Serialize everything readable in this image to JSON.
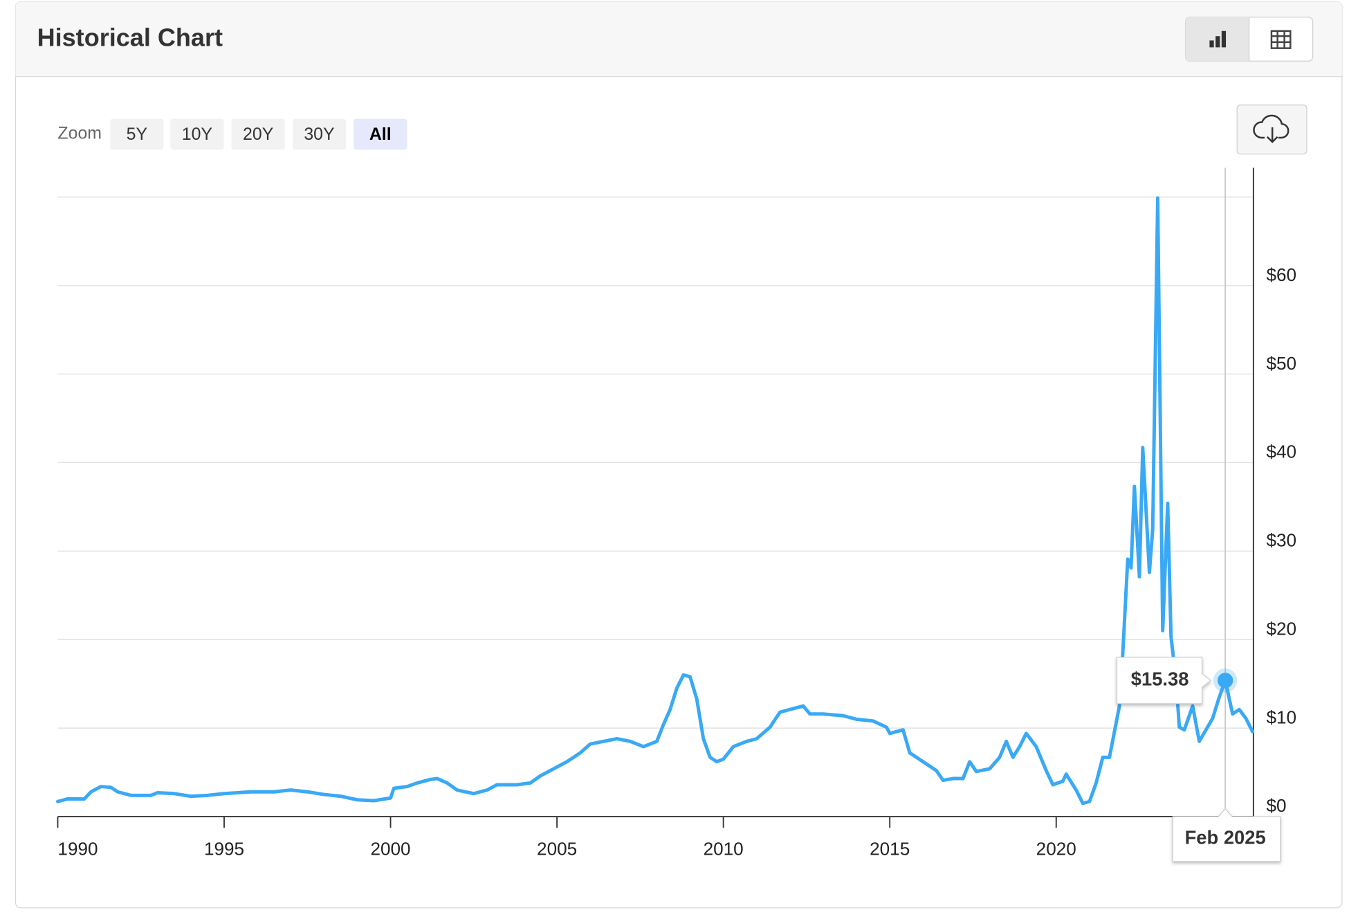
{
  "header": {
    "title": "Historical Chart"
  },
  "zoom": {
    "label": "Zoom",
    "options": [
      "5Y",
      "10Y",
      "20Y",
      "30Y",
      "All"
    ],
    "selected_index": 4
  },
  "chart_data": {
    "type": "line",
    "color": "#3aa9f5",
    "grid": true,
    "x": [
      1990.0,
      1990.3,
      1990.8,
      1991.0,
      1991.3,
      1991.6,
      1991.8,
      1992.2,
      1992.8,
      1993.0,
      1993.5,
      1994.0,
      1994.5,
      1995.0,
      1995.8,
      1996.5,
      1997.0,
      1997.5,
      1998.0,
      1998.5,
      1999.0,
      1999.5,
      2000.0,
      2000.1,
      2000.5,
      2000.8,
      2001.2,
      2001.4,
      2001.7,
      2002.0,
      2002.5,
      2002.9,
      2003.2,
      2003.8,
      2004.2,
      2004.5,
      2004.9,
      2005.3,
      2005.7,
      2006.0,
      2006.4,
      2006.8,
      2007.2,
      2007.6,
      2008.0,
      2008.2,
      2008.4,
      2008.6,
      2008.8,
      2009.0,
      2009.2,
      2009.4,
      2009.6,
      2009.8,
      2010.0,
      2010.3,
      2010.7,
      2011.0,
      2011.4,
      2011.7,
      2012.0,
      2012.4,
      2012.6,
      2013.0,
      2013.6,
      2014.0,
      2014.5,
      2014.9,
      2015.0,
      2015.4,
      2015.6,
      2016.0,
      2016.4,
      2016.6,
      2016.9,
      2017.2,
      2017.4,
      2017.6,
      2018.0,
      2018.3,
      2018.5,
      2018.7,
      2018.9,
      2019.1,
      2019.4,
      2019.7,
      2019.9,
      2020.2,
      2020.3,
      2020.6,
      2020.8,
      2021.0,
      2021.2,
      2021.4,
      2021.6,
      2021.9,
      2022.0,
      2022.15,
      2022.25,
      2022.35,
      2022.5,
      2022.6,
      2022.8,
      2022.9,
      2023.05,
      2023.2,
      2023.35,
      2023.45,
      2023.6,
      2023.7,
      2023.85,
      2024.1,
      2024.3,
      2024.5,
      2024.7,
      2024.9,
      2025.08,
      2025.3,
      2025.5,
      2025.7,
      2025.9
    ],
    "values": [
      1.7,
      2.0,
      2.0,
      2.8,
      3.4,
      3.3,
      2.8,
      2.4,
      2.4,
      2.7,
      2.6,
      2.3,
      2.4,
      2.6,
      2.8,
      2.8,
      3.0,
      2.8,
      2.5,
      2.3,
      1.9,
      1.8,
      2.1,
      3.2,
      3.4,
      3.8,
      4.2,
      4.3,
      3.8,
      3.0,
      2.6,
      3.0,
      3.6,
      3.6,
      3.8,
      4.6,
      5.4,
      6.2,
      7.2,
      8.2,
      8.5,
      8.8,
      8.5,
      7.9,
      8.5,
      10.4,
      12.1,
      14.5,
      16.0,
      15.8,
      13.3,
      8.8,
      6.7,
      6.2,
      6.5,
      7.9,
      8.5,
      8.8,
      10.1,
      11.8,
      12.1,
      12.5,
      11.6,
      11.6,
      11.4,
      11.0,
      10.8,
      10.1,
      9.4,
      9.8,
      7.2,
      6.2,
      5.2,
      4.1,
      4.3,
      4.3,
      6.2,
      5.1,
      5.4,
      6.7,
      8.5,
      6.7,
      7.9,
      9.4,
      7.9,
      5.2,
      3.6,
      4.0,
      4.8,
      3.0,
      1.5,
      1.7,
      3.8,
      6.7,
      6.7,
      12.5,
      18.4,
      29.1,
      28.1,
      37.3,
      27.1,
      41.7,
      27.6,
      32.5,
      69.9,
      21.0,
      35.4,
      20.3,
      15.5,
      10.1,
      9.8,
      12.5,
      8.5,
      9.8,
      11.1,
      13.5,
      15.38,
      11.6,
      12.1,
      11.1,
      9.6
    ],
    "xlim": [
      1990,
      2025.9
    ],
    "xticks": [
      1990,
      1995,
      2000,
      2005,
      2010,
      2015,
      2020
    ],
    "ylim": [
      0,
      70
    ],
    "yticks": [
      {
        "value": 0,
        "label": "$0"
      },
      {
        "value": 10,
        "label": "$10"
      },
      {
        "value": 20,
        "label": "$20"
      },
      {
        "value": 30,
        "label": "$30"
      },
      {
        "value": 40,
        "label": "$40"
      },
      {
        "value": 50,
        "label": "$50"
      },
      {
        "value": 60,
        "label": "$60"
      }
    ],
    "tooltip": {
      "x": 2025.08,
      "x_label": "Feb 2025",
      "value": 15.38,
      "value_label": "$15.38"
    }
  }
}
